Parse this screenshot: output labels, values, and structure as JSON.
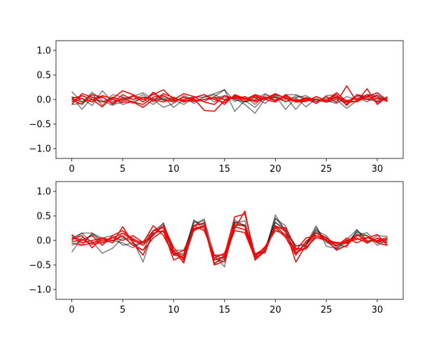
{
  "chart_data": [
    {
      "type": "line",
      "title": "",
      "xlabel": "",
      "ylabel": "",
      "xlim": [
        -1.55,
        32.55
      ],
      "ylim": [
        -1.2,
        1.2
      ],
      "xticks": [
        0,
        5,
        10,
        15,
        20,
        25,
        30
      ],
      "yticks": [
        -1.0,
        -0.5,
        0.0,
        0.5,
        1.0
      ],
      "xtick_labels": [
        "0",
        "5",
        "10",
        "15",
        "20",
        "25",
        "30"
      ],
      "ytick_labels": [
        "−1.0",
        "−0.5",
        "0.0",
        "0.5",
        "1.0"
      ],
      "grid": false,
      "x": [
        0,
        1,
        2,
        3,
        4,
        5,
        6,
        7,
        8,
        9,
        10,
        11,
        12,
        13,
        14,
        15,
        16,
        17,
        18,
        19,
        20,
        21,
        22,
        23,
        24,
        25,
        26,
        27,
        28,
        29,
        30,
        31
      ],
      "series": [
        {
          "color": "#000000",
          "opacity": 0.5,
          "values": [
            0.16,
            -0.05,
            0.11,
            -0.12,
            0.1,
            0.05,
            0.0,
            0.1,
            -0.05,
            0.08,
            -0.05,
            0.05,
            -0.08,
            0.06,
            0.12,
            0.2,
            -0.04,
            0.06,
            -0.1,
            0.1,
            0.05,
            0.0,
            0.04,
            0.08,
            -0.04,
            0.02,
            0.06,
            -0.05,
            0.08,
            0.03,
            -0.02,
            0.05
          ]
        },
        {
          "color": "#000000",
          "opacity": 0.5,
          "values": [
            0.06,
            -0.2,
            0.04,
            0.06,
            -0.1,
            -0.06,
            0.06,
            0.14,
            0.0,
            -0.16,
            -0.08,
            0.08,
            0.0,
            -0.04,
            0.06,
            0.2,
            -0.24,
            -0.02,
            -0.16,
            0.06,
            0.0,
            0.06,
            -0.2,
            0.04,
            -0.08,
            0.08,
            0.1,
            -0.1,
            0.06,
            -0.05,
            0.1,
            -0.02
          ]
        },
        {
          "color": "#000000",
          "opacity": 0.5,
          "values": [
            -0.05,
            0.02,
            -0.12,
            0.18,
            -0.05,
            0.0,
            0.08,
            -0.05,
            0.12,
            -0.02,
            0.0,
            -0.1,
            0.04,
            0.1,
            -0.05,
            0.05,
            0.02,
            -0.1,
            -0.28,
            0.02,
            0.1,
            -0.05,
            0.08,
            0.0,
            -0.04,
            -0.02,
            -0.08,
            0.06,
            0.0,
            0.1,
            0.05,
            -0.04
          ]
        },
        {
          "color": "#000000",
          "opacity": 0.5,
          "values": [
            0.02,
            0.08,
            0.0,
            -0.05,
            0.04,
            -0.1,
            -0.04,
            0.02,
            -0.1,
            0.05,
            -0.16,
            0.0,
            0.06,
            0.04,
            0.1,
            0.0,
            0.06,
            -0.05,
            0.04,
            -0.08,
            0.08,
            -0.2,
            0.04,
            -0.15,
            0.02,
            -0.04,
            0.02,
            -0.1,
            0.1,
            0.0,
            -0.04,
            0.02
          ]
        },
        {
          "color": "#000000",
          "opacity": 0.5,
          "values": [
            -0.1,
            -0.08,
            0.15,
            -0.02,
            -0.12,
            0.05,
            -0.08,
            0.05,
            0.02,
            0.0,
            0.05,
            -0.04,
            -0.02,
            0.0,
            0.02,
            0.08,
            0.0,
            -0.05,
            0.0,
            0.12,
            -0.05,
            0.1,
            0.1,
            0.02,
            0.0,
            -0.06,
            0.0,
            -0.18,
            -0.02,
            0.1,
            0.08,
            -0.04
          ]
        },
        {
          "color": "#ff0000",
          "opacity": 1,
          "values": [
            0.05,
            0.02,
            -0.05,
            0.08,
            0.02,
            0.18,
            0.1,
            0.0,
            0.1,
            0.2,
            0.0,
            0.12,
            0.06,
            -0.05,
            -0.1,
            0.08,
            0.02,
            0.06,
            -0.05,
            0.02,
            0.12,
            0.02,
            -0.02,
            -0.04,
            0.06,
            -0.02,
            0.1,
            -0.12,
            0.1,
            0.06,
            0.14,
            -0.02
          ]
        },
        {
          "color": "#ff0000",
          "opacity": 1,
          "values": [
            -0.05,
            0.08,
            0.0,
            -0.15,
            0.05,
            -0.02,
            0.08,
            -0.05,
            0.15,
            0.0,
            -0.05,
            0.05,
            -0.02,
            0.0,
            0.05,
            -0.1,
            0.1,
            0.02,
            0.05,
            0.0,
            0.1,
            0.04,
            -0.05,
            0.02,
            -0.08,
            0.06,
            -0.06,
            0.28,
            -0.05,
            0.1,
            -0.06,
            0.04
          ]
        },
        {
          "color": "#ff0000",
          "opacity": 1,
          "values": [
            0.0,
            -0.1,
            0.1,
            0.05,
            -0.08,
            0.1,
            0.0,
            0.05,
            -0.02,
            0.12,
            0.04,
            -0.05,
            0.02,
            -0.22,
            -0.24,
            -0.02,
            0.05,
            -0.04,
            0.08,
            0.0,
            -0.05,
            0.1,
            -0.04,
            0.04,
            0.0,
            -0.02,
            0.04,
            -0.06,
            -0.04,
            0.22,
            -0.1,
            0.06
          ]
        },
        {
          "color": "#ff0000",
          "opacity": 1,
          "values": [
            -0.1,
            0.12,
            0.05,
            -0.05,
            0.0,
            -0.05,
            -0.05,
            -0.1,
            0.05,
            0.08,
            -0.02,
            0.0,
            0.04,
            0.1,
            0.0,
            -0.06,
            0.08,
            0.02,
            -0.02,
            0.04,
            -0.02,
            0.08,
            -0.05,
            -0.04,
            0.06,
            -0.02,
            0.14,
            -0.04,
            -0.04,
            0.05,
            0.05,
            -0.04
          ]
        },
        {
          "color": "#ff0000",
          "opacity": 1,
          "values": [
            0.02,
            -0.05,
            0.0,
            0.05,
            -0.08,
            0.02,
            -0.05,
            -0.16,
            0.0,
            -0.05,
            0.02,
            -0.02,
            -0.04,
            0.0,
            0.05,
            0.0,
            0.06,
            0.0,
            0.1,
            0.04,
            0.04,
            -0.04,
            0.0,
            -0.02,
            0.0,
            -0.04,
            0.06,
            -0.02,
            0.02,
            0.0,
            0.02,
            -0.02
          ]
        }
      ]
    },
    {
      "type": "line",
      "title": "",
      "xlabel": "",
      "ylabel": "",
      "xlim": [
        -1.55,
        32.55
      ],
      "ylim": [
        -1.2,
        1.2
      ],
      "xticks": [
        0,
        5,
        10,
        15,
        20,
        25,
        30
      ],
      "yticks": [
        -1.0,
        -0.5,
        0.0,
        0.5,
        1.0
      ],
      "xtick_labels": [
        "0",
        "5",
        "10",
        "15",
        "20",
        "25",
        "30"
      ],
      "ytick_labels": [
        "−1.0",
        "−0.5",
        "0.0",
        "0.5",
        "1.0"
      ],
      "grid": false,
      "x": [
        0,
        1,
        2,
        3,
        4,
        5,
        6,
        7,
        8,
        9,
        10,
        11,
        12,
        13,
        14,
        15,
        16,
        17,
        18,
        19,
        20,
        21,
        22,
        23,
        24,
        25,
        26,
        27,
        28,
        29,
        30,
        31
      ],
      "series": [
        {
          "color": "#000000",
          "opacity": 0.5,
          "values": [
            -0.24,
            0.06,
            -0.02,
            -0.26,
            -0.16,
            0.05,
            0.0,
            -0.44,
            0.2,
            0.18,
            -0.3,
            -0.26,
            0.42,
            0.22,
            -0.3,
            -0.54,
            0.42,
            0.3,
            -0.4,
            -0.22,
            0.52,
            0.18,
            -0.24,
            -0.08,
            0.3,
            -0.12,
            -0.16,
            0.02,
            0.22,
            -0.04,
            0.1,
            0.08
          ]
        },
        {
          "color": "#000000",
          "opacity": 0.5,
          "values": [
            0.1,
            -0.1,
            0.15,
            0.05,
            0.1,
            -0.1,
            -0.05,
            -0.2,
            0.2,
            0.34,
            -0.3,
            -0.34,
            0.36,
            0.4,
            -0.46,
            -0.38,
            0.36,
            0.4,
            -0.36,
            -0.2,
            0.44,
            0.3,
            -0.2,
            -0.1,
            0.26,
            -0.02,
            -0.18,
            -0.1,
            0.18,
            0.1,
            -0.1,
            0.02
          ]
        },
        {
          "color": "#000000",
          "opacity": 0.5,
          "values": [
            0.0,
            0.15,
            -0.05,
            0.05,
            0.0,
            0.08,
            -0.1,
            -0.05,
            0.1,
            0.36,
            -0.2,
            -0.44,
            0.3,
            0.34,
            -0.4,
            -0.32,
            0.36,
            0.28,
            -0.3,
            -0.14,
            0.36,
            0.24,
            -0.12,
            -0.06,
            0.2,
            0.1,
            -0.16,
            -0.04,
            0.1,
            0.16,
            -0.05,
            0.04
          ]
        },
        {
          "color": "#000000",
          "opacity": 0.5,
          "values": [
            -0.1,
            0.0,
            0.12,
            0.02,
            -0.05,
            0.15,
            0.05,
            -0.1,
            0.1,
            0.3,
            -0.24,
            -0.3,
            0.4,
            0.3,
            -0.36,
            -0.44,
            0.3,
            0.32,
            -0.32,
            -0.18,
            0.46,
            0.2,
            -0.16,
            -0.18,
            0.16,
            0.04,
            -0.06,
            -0.14,
            0.22,
            0.0,
            -0.02,
            -0.05
          ]
        },
        {
          "color": "#000000",
          "opacity": 0.5,
          "values": [
            0.05,
            0.15,
            0.15,
            -0.05,
            0.0,
            -0.05,
            -0.15,
            -0.02,
            0.2,
            0.25,
            -0.2,
            -0.2,
            0.3,
            0.44,
            -0.3,
            -0.38,
            0.38,
            0.3,
            -0.26,
            -0.26,
            0.38,
            0.16,
            -0.1,
            -0.1,
            0.22,
            -0.04,
            -0.1,
            -0.04,
            0.16,
            -0.06,
            0.04,
            0.0
          ]
        },
        {
          "color": "#ff0000",
          "opacity": 1,
          "values": [
            0.12,
            -0.05,
            0.0,
            0.05,
            -0.05,
            0.28,
            -0.05,
            -0.3,
            0.15,
            0.2,
            -0.2,
            -0.46,
            0.3,
            0.36,
            -0.48,
            -0.3,
            0.48,
            0.54,
            -0.3,
            -0.2,
            0.3,
            0.2,
            -0.44,
            -0.1,
            0.16,
            0.06,
            -0.12,
            0.05,
            -0.05,
            0.05,
            0.12,
            -0.1
          ]
        },
        {
          "color": "#ff0000",
          "opacity": 1,
          "values": [
            0.02,
            0.1,
            -0.15,
            0.05,
            0.0,
            0.1,
            -0.1,
            -0.2,
            0.05,
            0.2,
            -0.4,
            -0.3,
            0.24,
            0.3,
            -0.5,
            -0.42,
            0.24,
            0.6,
            -0.4,
            -0.2,
            0.26,
            0.26,
            -0.16,
            -0.18,
            0.1,
            0.02,
            -0.2,
            -0.1,
            0.1,
            0.1,
            -0.05,
            -0.1
          ]
        },
        {
          "color": "#ff0000",
          "opacity": 1,
          "values": [
            -0.02,
            0.0,
            0.1,
            -0.1,
            0.1,
            0.2,
            0.02,
            -0.05,
            0.3,
            0.1,
            -0.3,
            -0.2,
            0.2,
            0.3,
            -0.4,
            -0.34,
            0.2,
            0.16,
            -0.36,
            -0.22,
            0.3,
            0.1,
            -0.2,
            0.05,
            0.1,
            0.0,
            -0.1,
            0.0,
            0.05,
            -0.05,
            0.05,
            -0.04
          ]
        },
        {
          "color": "#ff0000",
          "opacity": 1,
          "values": [
            -0.05,
            -0.1,
            -0.05,
            0.0,
            0.05,
            0.15,
            0.0,
            -0.1,
            0.2,
            0.28,
            -0.26,
            -0.36,
            0.3,
            0.2,
            -0.3,
            -0.3,
            0.32,
            0.3,
            -0.28,
            -0.16,
            0.26,
            0.06,
            -0.3,
            -0.02,
            0.16,
            0.0,
            -0.04,
            -0.06,
            0.12,
            -0.02,
            0.0,
            0.06
          ]
        },
        {
          "color": "#ff0000",
          "opacity": 1,
          "values": [
            0.05,
            0.02,
            -0.08,
            -0.04,
            0.06,
            0.0,
            0.1,
            -0.04,
            0.12,
            0.3,
            -0.14,
            -0.4,
            0.22,
            0.28,
            -0.36,
            -0.26,
            0.28,
            0.22,
            -0.34,
            -0.12,
            0.2,
            0.12,
            -0.26,
            -0.14,
            0.06,
            0.0,
            -0.06,
            -0.02,
            0.02,
            0.06,
            -0.02,
            0.02
          ]
        }
      ]
    }
  ]
}
